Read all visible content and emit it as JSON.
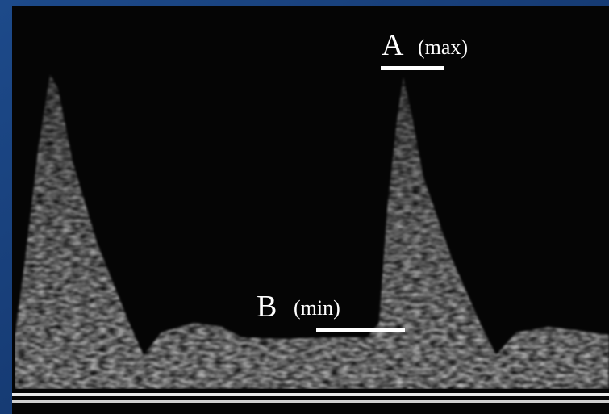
{
  "labels": [
    {
      "letter": "A",
      "note": "(max)"
    },
    {
      "letter": "B",
      "note": "(min)"
    }
  ]
}
